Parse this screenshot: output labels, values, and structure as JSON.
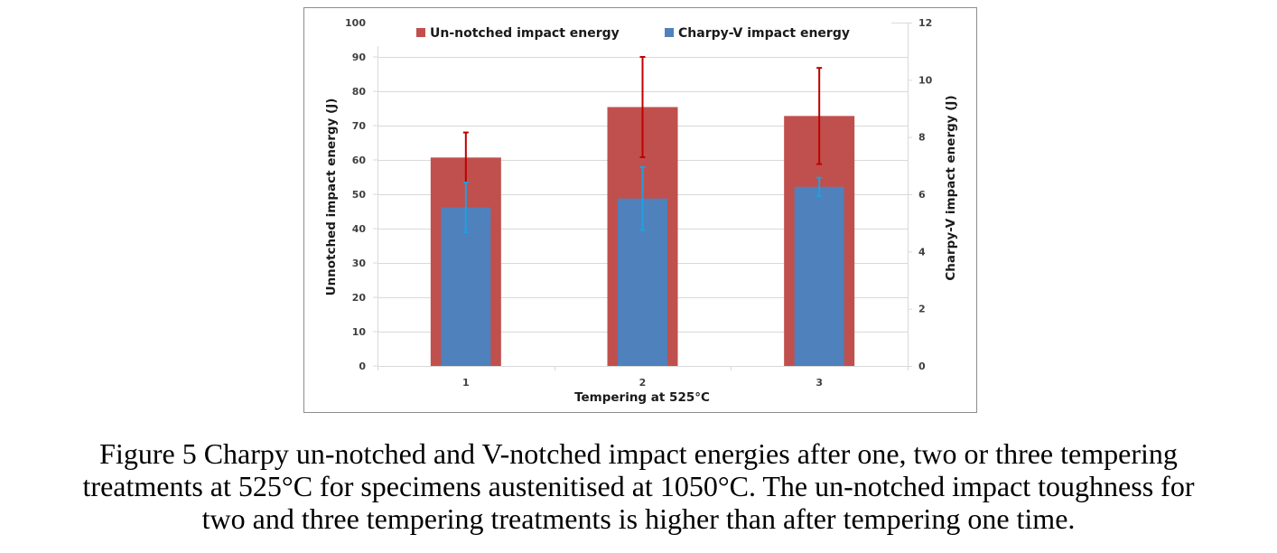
{
  "chart_data": {
    "type": "bar",
    "title": "",
    "xlabel": "Tempering at 525°C",
    "ylabel": "Unnotched impact energy (J)",
    "y2label": "Charpy-V impact energy (J)",
    "categories": [
      "1",
      "2",
      "3"
    ],
    "ylim": [
      0,
      100
    ],
    "y2lim": [
      0,
      12
    ],
    "yticks": [
      0,
      10,
      20,
      30,
      40,
      50,
      60,
      70,
      80,
      90,
      100
    ],
    "y2ticks": [
      0,
      2,
      4,
      6,
      8,
      10,
      12
    ],
    "grid": true,
    "legend_position": "top",
    "series": [
      {
        "name": "Un-notched impact energy",
        "axis": "left",
        "color": "#c0504d",
        "error_color": "#c00000",
        "values": [
          60.7,
          75.4,
          72.8
        ],
        "errors": [
          7.3,
          14.6,
          14.0
        ]
      },
      {
        "name": "Charpy-V impact energy",
        "axis": "right",
        "color": "#4f81bd",
        "error_color": "#1fa0e0",
        "values": [
          5.54,
          5.85,
          6.26
        ],
        "errors": [
          0.87,
          1.1,
          0.32
        ]
      }
    ]
  },
  "caption": {
    "lines": [
      "Figure 5 Charpy un-notched and V-notched impact energies after one, two or three tempering",
      "treatments at 525°C for specimens austenitised at 1050°C. The un-notched impact toughness for",
      "two and three tempering treatments is higher than after tempering one time."
    ]
  }
}
